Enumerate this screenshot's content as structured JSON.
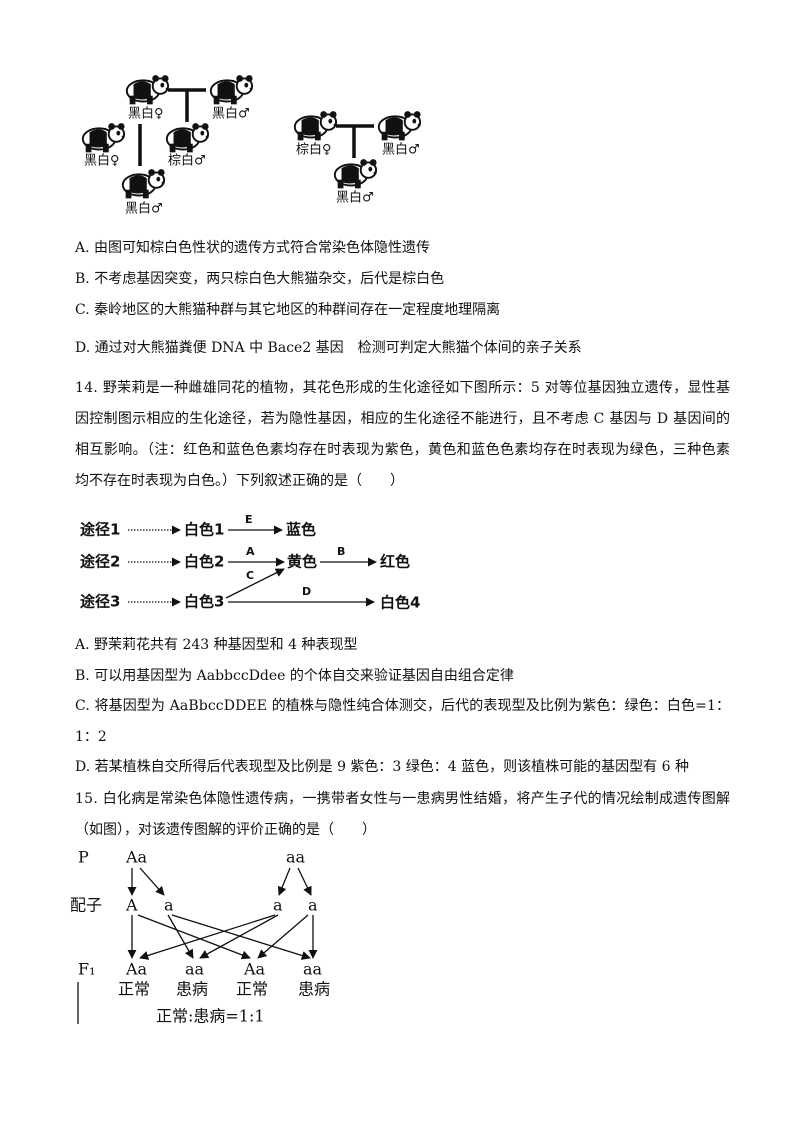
{
  "q13": {
    "pedigree_left": [
      "黑白♀",
      "黑白♂",
      "黑白♀",
      "棕白♂",
      "黑白♂"
    ],
    "pedigree_right": [
      "棕白♀",
      "黑白♂",
      "黑白♂"
    ],
    "options": [
      "A. 由图可知棕白色性状的遗传方式符合常染色体隐性遗传",
      "B. 不考虑基因突变，两只棕白色大熊猫杂交，后代是棕白色",
      "C. 秦岭地区的大熊猫种群与其它地区的种群间存在一定程度地理隔离",
      "D. 通过对大熊猫粪便 DNA 中 Bace2 基因　检测可判定大熊猫个体间的亲子关系"
    ]
  },
  "q14": {
    "stem": [
      "14. 野茉莉是一种雌雄同花的植物，其花色形成的生化途径如下图所示：5 对等位基因独立遗传，显性基",
      "因控制图示相应的生化途径，若为隐性基因，相应的生化途径不能进行，且不考虑 C 基因与 D 基因间的",
      "相互影响。（注：红色和蓝色色素均存在时表现为紫色，黄色和蓝色色素均存在时表现为绿色，三种色素",
      "均不存在时表现为白色。）下列叙述正确的是（　　）"
    ],
    "pathway": {
      "routes": [
        "途径1",
        "途径2",
        "途径3"
      ],
      "starts": [
        "白色1",
        "白色2",
        "白色3"
      ],
      "genes": [
        "E",
        "A",
        "B",
        "C",
        "D"
      ],
      "products": [
        "蓝色",
        "黄色",
        "红色",
        "白色4"
      ]
    },
    "options": [
      "A. 野茉莉花共有 243 种基因型和 4 种表现型",
      "B. 可以用基因型为 AabbccDdee 的个体自交来验证基因自由组合定律",
      "C. 将基因型为 AaBbccDDEE 的植株与隐性纯合体测交，后代的表现型及比例为紫色：绿色：白色=1：",
      "1：2",
      "D. 若某植株自交所得后代表现型及比例是 9 紫色：3 绿色：4 蓝色，则该植株可能的基因型有 6 种"
    ]
  },
  "q15": {
    "stem": [
      "15. 白化病是常染色体隐性遗传病，一携带者女性与一患病男性结婚，将产生子代的情况绘制成遗传图解",
      "（如图），对该遗传图解的评价正确的是（　　）"
    ],
    "diagram": {
      "row_labels": [
        "P",
        "配子",
        "F₁"
      ],
      "parents": [
        "Aa",
        "aa"
      ],
      "gametes": [
        "A",
        "a",
        "a",
        "a"
      ],
      "offspring": [
        "Aa",
        "aa",
        "Aa",
        "aa"
      ],
      "phenotypes": [
        "正常",
        "患病",
        "正常",
        "患病"
      ],
      "ratio": "正常:患病=1:1"
    }
  }
}
